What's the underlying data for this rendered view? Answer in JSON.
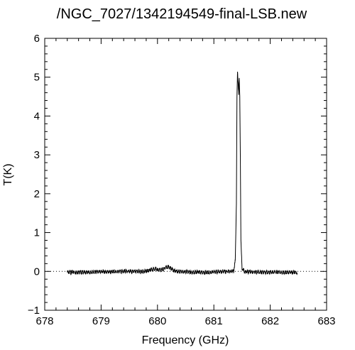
{
  "chart_data": {
    "type": "line",
    "title": "/NGC_7027/1342194549-final-LSB.new",
    "xlabel": "Frequency (GHz)",
    "ylabel": "T(K)",
    "xlim": [
      678,
      683
    ],
    "ylim": [
      -1,
      6
    ],
    "xticks": [
      "678",
      "679",
      "680",
      "681",
      "682",
      "683"
    ],
    "yticks": [
      "−1",
      "0",
      "1",
      "2",
      "3",
      "4",
      "5",
      "6"
    ],
    "zero_line": "dotted",
    "grid": false,
    "legend": "none",
    "line_color": "#000000",
    "series": [
      {
        "x": [
          678.4,
          678.6,
          678.8,
          679.0,
          679.2,
          679.4,
          679.6,
          679.8,
          679.92,
          679.96,
          680.0,
          680.05,
          680.1,
          680.15,
          680.2,
          680.25,
          680.3,
          680.4,
          680.6,
          680.8,
          681.0,
          681.2,
          681.35,
          681.38,
          681.4,
          681.41,
          681.42,
          681.43,
          681.44,
          681.45,
          681.46,
          681.47,
          681.48,
          681.5,
          681.55,
          681.7,
          681.9,
          682.1,
          682.3,
          682.48
        ],
        "y": [
          0.0,
          0.01,
          0.0,
          0.02,
          0.01,
          0.03,
          0.02,
          0.03,
          0.08,
          0.1,
          0.07,
          0.06,
          0.08,
          0.13,
          0.14,
          0.09,
          0.04,
          0.02,
          0.01,
          0.0,
          0.01,
          0.02,
          0.03,
          0.3,
          1.8,
          4.5,
          5.15,
          4.9,
          4.6,
          5.0,
          4.5,
          3.0,
          0.8,
          0.1,
          0.02,
          0.01,
          0.0,
          0.01,
          0.0,
          0.0
        ]
      }
    ]
  }
}
